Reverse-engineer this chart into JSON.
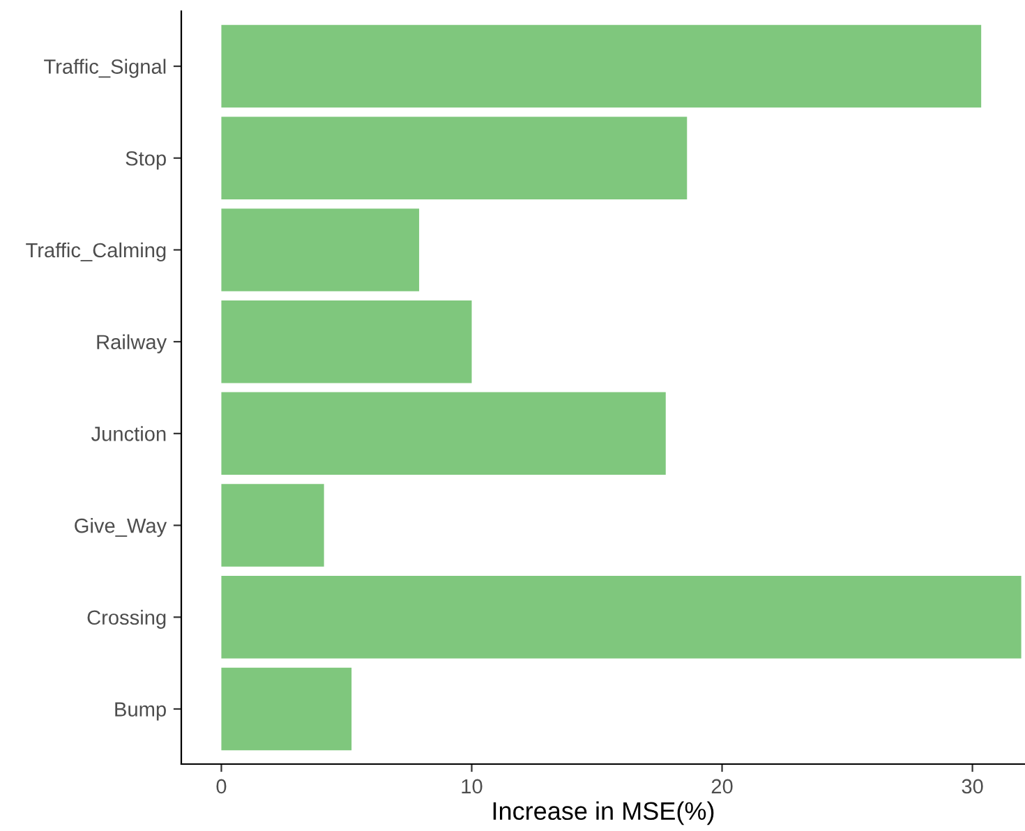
{
  "chart_data": {
    "type": "bar",
    "orientation": "horizontal",
    "xlabel": "Increase in MSE(%)",
    "categories": [
      "Traffic_Signal",
      "Stop",
      "Traffic_Calming",
      "Railway",
      "Junction",
      "Give_Way",
      "Crossing",
      "Bump"
    ],
    "values": [
      30.35,
      18.6,
      7.9,
      10.0,
      17.75,
      4.1,
      31.95,
      5.2
    ],
    "color": "#7fc77d",
    "xlim": [
      -1.6,
      32.1
    ],
    "xticks": [
      0,
      10,
      20,
      30
    ],
    "grid": false
  }
}
